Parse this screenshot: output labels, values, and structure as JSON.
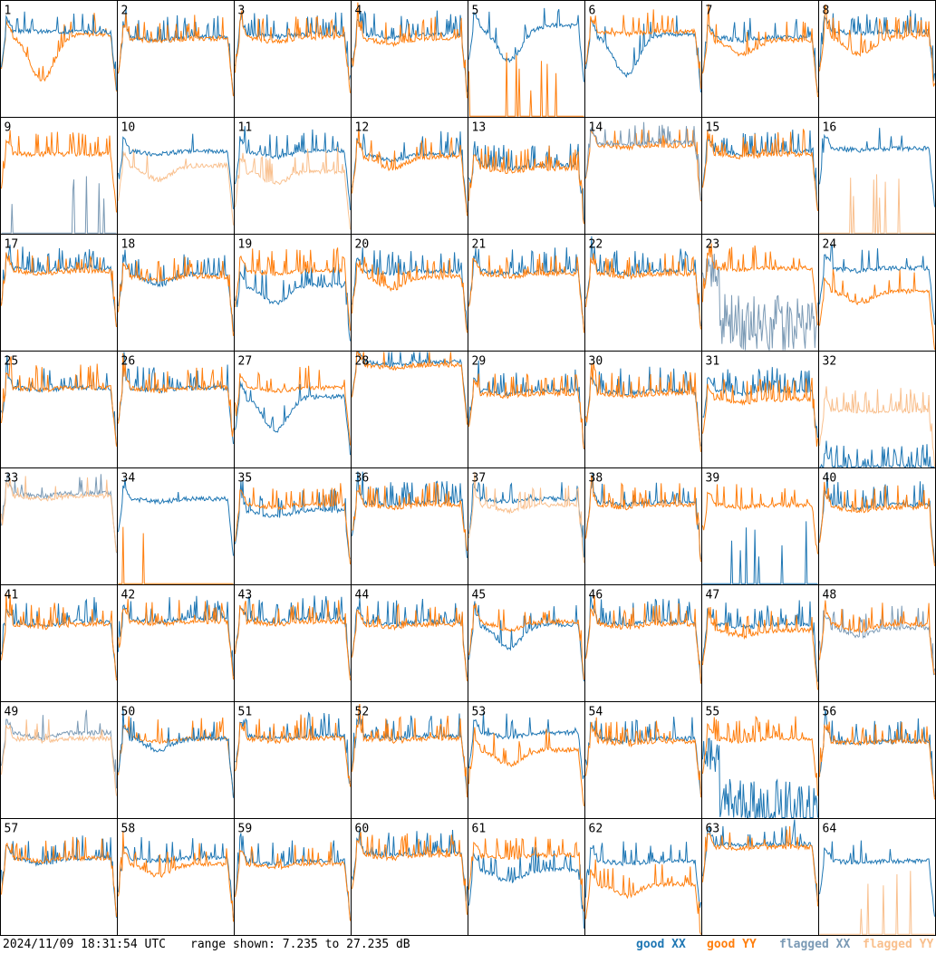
{
  "footer": {
    "timestamp": "2024/11/09 18:31:54 UTC",
    "range_text": "range shown: 7.235 to 27.235 dB"
  },
  "legend": [
    {
      "label": "good XX",
      "color": "#1f77b4"
    },
    {
      "label": "good YY",
      "color": "#ff7f0e"
    },
    {
      "label": "flagged XX",
      "color": "#7b9ab5"
    },
    {
      "label": "flagged YY",
      "color": "#f9c08e"
    }
  ],
  "chart_data": {
    "type": "line",
    "grid_rows": 8,
    "grid_cols": 8,
    "ylim": [
      7.235,
      27.235
    ],
    "y_unit": "dB",
    "colors": {
      "good_xx": "#1f77b4",
      "good_yy": "#ff7f0e",
      "flagged_xx": "#7b9ab5",
      "flagged_yy": "#f9c08e"
    },
    "tiles": [
      {
        "id": "1",
        "xx": "good",
        "yy": "good",
        "xx_base": 22.0,
        "yy_base": 21.5,
        "xx_dip": 0.0,
        "yy_dip": 8.0,
        "spikes": 0.4,
        "front": "top"
      },
      {
        "id": "2",
        "xx": "good",
        "yy": "good",
        "xx_base": 21.0,
        "yy_base": 20.8,
        "xx_dip": 0.5,
        "yy_dip": 0.5,
        "spikes": 1.0
      },
      {
        "id": "3",
        "xx": "good",
        "yy": "good",
        "xx_base": 21.6,
        "yy_base": 21.0,
        "xx_dip": 0.5,
        "yy_dip": 0.8,
        "spikes": 1.0
      },
      {
        "id": "4",
        "xx": "good",
        "yy": "good",
        "xx_base": 21.5,
        "yy_base": 20.8,
        "xx_dip": 0.6,
        "yy_dip": 1.0,
        "spikes": 1.0
      },
      {
        "id": "5",
        "xx": "good",
        "yy": "good",
        "xx_base": 23.0,
        "yy_base": 7.235,
        "xx_dip": 6.0,
        "yy_dip": 0.0,
        "spikes": 0.3,
        "yy_spiky_floor": true
      },
      {
        "id": "6",
        "xx": "good",
        "yy": "good",
        "xx_base": 21.5,
        "yy_base": 22.0,
        "xx_dip": 7.0,
        "yy_dip": 0.5,
        "spikes": 0.6
      },
      {
        "id": "7",
        "xx": "good",
        "yy": "good",
        "xx_base": 21.0,
        "yy_base": 20.5,
        "xx_dip": 0.5,
        "yy_dip": 2.5,
        "spikes": 0.6
      },
      {
        "id": "8",
        "xx": "good",
        "yy": "good",
        "xx_base": 22.0,
        "yy_base": 21.0,
        "xx_dip": 0.3,
        "yy_dip": 3.0,
        "spikes": 1.2
      },
      {
        "id": "9",
        "xx": "flagged",
        "yy": "good",
        "xx_base": 7.8,
        "yy_base": 21.0,
        "xx_dip": 0.0,
        "yy_dip": 0.0,
        "spikes": 1.0,
        "xx_spiky_floor": true
      },
      {
        "id": "10",
        "xx": "good",
        "yy": "flagged",
        "xx_base": 21.5,
        "yy_base": 19.0,
        "xx_dip": 0.5,
        "yy_dip": 2.5,
        "spikes": 0.3,
        "front": "top"
      },
      {
        "id": "11",
        "xx": "good",
        "yy": "flagged",
        "xx_base": 21.5,
        "yy_base": 18.0,
        "xx_dip": 1.0,
        "yy_dip": 2.0,
        "spikes": 0.8
      },
      {
        "id": "12",
        "xx": "good",
        "yy": "good",
        "xx_base": 21.0,
        "yy_base": 20.5,
        "xx_dip": 1.0,
        "yy_dip": 2.0,
        "spikes": 1.0
      },
      {
        "id": "13",
        "xx": "good",
        "yy": "good",
        "xx_base": 19.0,
        "yy_base": 18.5,
        "xx_dip": 0.5,
        "yy_dip": 0.5,
        "spikes": 1.2
      },
      {
        "id": "14",
        "xx": "flagged",
        "yy": "good",
        "xx_base": 23.0,
        "yy_base": 22.5,
        "xx_dip": 0.3,
        "yy_dip": 0.3,
        "spikes": 1.0,
        "front": "top"
      },
      {
        "id": "15",
        "xx": "good",
        "yy": "good",
        "xx_base": 21.5,
        "yy_base": 21.0,
        "xx_dip": 0.5,
        "yy_dip": 0.5,
        "spikes": 1.0
      },
      {
        "id": "16",
        "xx": "good",
        "yy": "flagged",
        "xx_base": 22.0,
        "yy_base": 7.235,
        "xx_dip": 0.3,
        "yy_dip": 0.0,
        "spikes": 0.2,
        "yy_spiky_floor": true
      },
      {
        "id": "17",
        "xx": "good",
        "yy": "good",
        "xx_base": 21.5,
        "yy_base": 21.0,
        "xx_dip": 0.5,
        "yy_dip": 0.5,
        "spikes": 1.0
      },
      {
        "id": "18",
        "xx": "good",
        "yy": "good",
        "xx_base": 20.5,
        "yy_base": 20.0,
        "xx_dip": 2.0,
        "yy_dip": 0.5,
        "spikes": 1.0
      },
      {
        "id": "19",
        "xx": "good",
        "yy": "good",
        "xx_base": 18.5,
        "yy_base": 21.0,
        "xx_dip": 3.0,
        "yy_dip": 0.5,
        "spikes": 1.0
      },
      {
        "id": "20",
        "xx": "good",
        "yy": "good",
        "xx_base": 21.0,
        "yy_base": 20.0,
        "xx_dip": 0.5,
        "yy_dip": 2.0,
        "spikes": 1.0
      },
      {
        "id": "21",
        "xx": "good",
        "yy": "good",
        "xx_base": 21.0,
        "yy_base": 20.5,
        "xx_dip": 0.5,
        "yy_dip": 0.5,
        "spikes": 1.0
      },
      {
        "id": "22",
        "xx": "good",
        "yy": "good",
        "xx_base": 21.0,
        "yy_base": 20.5,
        "xx_dip": 0.5,
        "yy_dip": 0.5,
        "spikes": 1.0
      },
      {
        "id": "23",
        "xx": "flagged",
        "yy": "good",
        "xx_base": 12.0,
        "yy_base": 21.5,
        "xx_dip": 0.0,
        "yy_dip": 0.3,
        "spikes": 1.0,
        "xx_noisy": true
      },
      {
        "id": "24",
        "xx": "good",
        "yy": "good",
        "xx_base": 21.5,
        "yy_base": 17.5,
        "xx_dip": 0.5,
        "yy_dip": 2.0,
        "spikes": 0.6
      },
      {
        "id": "25",
        "xx": "good",
        "yy": "good",
        "xx_base": 21.0,
        "yy_base": 21.0,
        "xx_dip": 0.3,
        "yy_dip": 0.3,
        "spikes": 1.2
      },
      {
        "id": "26",
        "xx": "good",
        "yy": "good",
        "xx_base": 21.0,
        "yy_base": 21.0,
        "xx_dip": 0.5,
        "yy_dip": 0.5,
        "spikes": 1.0
      },
      {
        "id": "27",
        "xx": "good",
        "yy": "good",
        "xx_base": 19.5,
        "yy_base": 21.0,
        "xx_dip": 6.0,
        "yy_dip": 0.5,
        "spikes": 0.6
      },
      {
        "id": "28",
        "xx": "good",
        "yy": "good",
        "xx_base": 25.5,
        "yy_base": 25.0,
        "xx_dip": 0.5,
        "yy_dip": 0.5,
        "spikes": 0.2
      },
      {
        "id": "29",
        "xx": "good",
        "yy": "good",
        "xx_base": 20.5,
        "yy_base": 20.0,
        "xx_dip": 0.5,
        "yy_dip": 0.5,
        "spikes": 1.0
      },
      {
        "id": "30",
        "xx": "good",
        "yy": "good",
        "xx_base": 20.5,
        "yy_base": 20.0,
        "xx_dip": 0.5,
        "yy_dip": 0.5,
        "spikes": 1.0
      },
      {
        "id": "31",
        "xx": "good",
        "yy": "good",
        "xx_base": 20.5,
        "yy_base": 19.0,
        "xx_dip": 0.5,
        "yy_dip": 0.5,
        "spikes": 1.2
      },
      {
        "id": "32",
        "xx": "good",
        "yy": "flagged",
        "xx_base": 7.3,
        "yy_base": 17.0,
        "xx_dip": 0.0,
        "yy_dip": 0.0,
        "spikes": 1.6
      },
      {
        "id": "33",
        "xx": "flagged",
        "yy": "flagged",
        "xx_base": 23.0,
        "yy_base": 22.5,
        "xx_dip": 0.5,
        "yy_dip": 0.5,
        "spikes": 0.4
      },
      {
        "id": "34",
        "xx": "good",
        "yy": "good",
        "xx_base": 22.0,
        "yy_base": 7.235,
        "xx_dip": 0.5,
        "yy_dip": 0.0,
        "spikes": 0.2,
        "yy_spiky_floor": true
      },
      {
        "id": "35",
        "xx": "good",
        "yy": "good",
        "xx_base": 20.0,
        "yy_base": 21.0,
        "xx_dip": 1.0,
        "yy_dip": 0.5,
        "spikes": 1.0
      },
      {
        "id": "36",
        "xx": "good",
        "yy": "good",
        "xx_base": 21.5,
        "yy_base": 21.0,
        "xx_dip": 0.5,
        "yy_dip": 0.5,
        "spikes": 1.0
      },
      {
        "id": "37",
        "xx": "good",
        "yy": "flagged",
        "xx_base": 22.0,
        "yy_base": 21.0,
        "xx_dip": 0.5,
        "yy_dip": 1.0,
        "spikes": 0.6
      },
      {
        "id": "38",
        "xx": "good",
        "yy": "good",
        "xx_base": 21.5,
        "yy_base": 21.0,
        "xx_dip": 0.5,
        "yy_dip": 0.5,
        "spikes": 0.8
      },
      {
        "id": "39",
        "xx": "good",
        "yy": "good",
        "xx_base": 7.3,
        "yy_base": 21.0,
        "xx_dip": 0.0,
        "yy_dip": 0.5,
        "spikes": 1.0,
        "xx_spiky_floor": true
      },
      {
        "id": "40",
        "xx": "good",
        "yy": "good",
        "xx_base": 21.0,
        "yy_base": 20.5,
        "xx_dip": 0.5,
        "yy_dip": 0.5,
        "spikes": 1.0
      },
      {
        "id": "41",
        "xx": "good",
        "yy": "good",
        "xx_base": 21.0,
        "yy_base": 20.5,
        "xx_dip": 0.8,
        "yy_dip": 0.5,
        "spikes": 1.0
      },
      {
        "id": "42",
        "xx": "good",
        "yy": "good",
        "xx_base": 21.5,
        "yy_base": 21.0,
        "xx_dip": 0.5,
        "yy_dip": 0.5,
        "spikes": 1.0
      },
      {
        "id": "43",
        "xx": "good",
        "yy": "good",
        "xx_base": 21.5,
        "yy_base": 21.0,
        "xx_dip": 0.5,
        "yy_dip": 0.5,
        "spikes": 1.0
      },
      {
        "id": "44",
        "xx": "good",
        "yy": "good",
        "xx_base": 21.0,
        "yy_base": 20.5,
        "xx_dip": 0.5,
        "yy_dip": 0.5,
        "spikes": 1.0
      },
      {
        "id": "45",
        "xx": "good",
        "yy": "good",
        "xx_base": 20.5,
        "yy_base": 21.0,
        "xx_dip": 4.0,
        "yy_dip": 1.5,
        "spikes": 0.6
      },
      {
        "id": "46",
        "xx": "good",
        "yy": "good",
        "xx_base": 21.0,
        "yy_base": 20.5,
        "xx_dip": 0.5,
        "yy_dip": 0.5,
        "spikes": 1.0
      },
      {
        "id": "47",
        "xx": "good",
        "yy": "good",
        "xx_base": 20.5,
        "yy_base": 19.5,
        "xx_dip": 0.5,
        "yy_dip": 1.0,
        "spikes": 1.0
      },
      {
        "id": "48",
        "xx": "flagged",
        "yy": "good",
        "xx_base": 20.0,
        "yy_base": 20.5,
        "xx_dip": 1.5,
        "yy_dip": 1.0,
        "spikes": 1.0
      },
      {
        "id": "49",
        "xx": "flagged",
        "yy": "flagged",
        "xx_base": 22.0,
        "yy_base": 21.0,
        "xx_dip": 1.0,
        "yy_dip": 0.5,
        "spikes": 0.4
      },
      {
        "id": "50",
        "xx": "good",
        "yy": "good",
        "xx_base": 21.0,
        "yy_base": 21.0,
        "xx_dip": 2.0,
        "yy_dip": 0.5,
        "spikes": 0.8,
        "front": "top"
      },
      {
        "id": "51",
        "xx": "good",
        "yy": "good",
        "xx_base": 21.5,
        "yy_base": 21.0,
        "xx_dip": 0.5,
        "yy_dip": 0.5,
        "spikes": 1.0
      },
      {
        "id": "52",
        "xx": "good",
        "yy": "good",
        "xx_base": 21.5,
        "yy_base": 21.0,
        "xx_dip": 0.5,
        "yy_dip": 0.5,
        "spikes": 1.0
      },
      {
        "id": "53",
        "xx": "good",
        "yy": "good",
        "xx_base": 22.0,
        "yy_base": 19.0,
        "xx_dip": 0.8,
        "yy_dip": 2.5,
        "spikes": 0.6
      },
      {
        "id": "54",
        "xx": "good",
        "yy": "good",
        "xx_base": 21.0,
        "yy_base": 20.5,
        "xx_dip": 0.5,
        "yy_dip": 0.5,
        "spikes": 1.0
      },
      {
        "id": "55",
        "xx": "good",
        "yy": "good",
        "xx_base": 9.0,
        "yy_base": 21.0,
        "xx_dip": 0.0,
        "yy_dip": 0.5,
        "spikes": 1.0,
        "xx_noisy": true
      },
      {
        "id": "56",
        "xx": "good",
        "yy": "good",
        "xx_base": 20.5,
        "yy_base": 20.5,
        "xx_dip": 0.3,
        "yy_dip": 0.3,
        "spikes": 0.8
      },
      {
        "id": "57",
        "xx": "good",
        "yy": "good",
        "xx_base": 20.5,
        "yy_base": 20.5,
        "xx_dip": 1.0,
        "yy_dip": 0.5,
        "spikes": 1.0
      },
      {
        "id": "58",
        "xx": "good",
        "yy": "good",
        "xx_base": 20.5,
        "yy_base": 19.5,
        "xx_dip": 0.5,
        "yy_dip": 2.0,
        "spikes": 0.8
      },
      {
        "id": "59",
        "xx": "good",
        "yy": "good",
        "xx_base": 20.0,
        "yy_base": 19.5,
        "xx_dip": 0.5,
        "yy_dip": 0.5,
        "spikes": 0.6
      },
      {
        "id": "60",
        "xx": "good",
        "yy": "good",
        "xx_base": 21.5,
        "yy_base": 21.0,
        "xx_dip": 0.5,
        "yy_dip": 0.5,
        "spikes": 1.0
      },
      {
        "id": "61",
        "xx": "good",
        "yy": "good",
        "xx_base": 18.5,
        "yy_base": 21.0,
        "xx_dip": 2.0,
        "yy_dip": 0.5,
        "spikes": 1.0
      },
      {
        "id": "62",
        "xx": "good",
        "yy": "good",
        "xx_base": 20.0,
        "yy_base": 16.0,
        "xx_dip": 0.5,
        "yy_dip": 2.0,
        "spikes": 0.8
      },
      {
        "id": "63",
        "xx": "good",
        "yy": "good",
        "xx_base": 23.0,
        "yy_base": 22.5,
        "xx_dip": 0.3,
        "yy_dip": 0.3,
        "spikes": 0.6
      },
      {
        "id": "64",
        "xx": "good",
        "yy": "flagged",
        "xx_base": 20.0,
        "yy_base": 7.235,
        "xx_dip": 0.3,
        "yy_dip": 0.0,
        "spikes": 0.2,
        "yy_spiky_floor": true
      }
    ]
  }
}
